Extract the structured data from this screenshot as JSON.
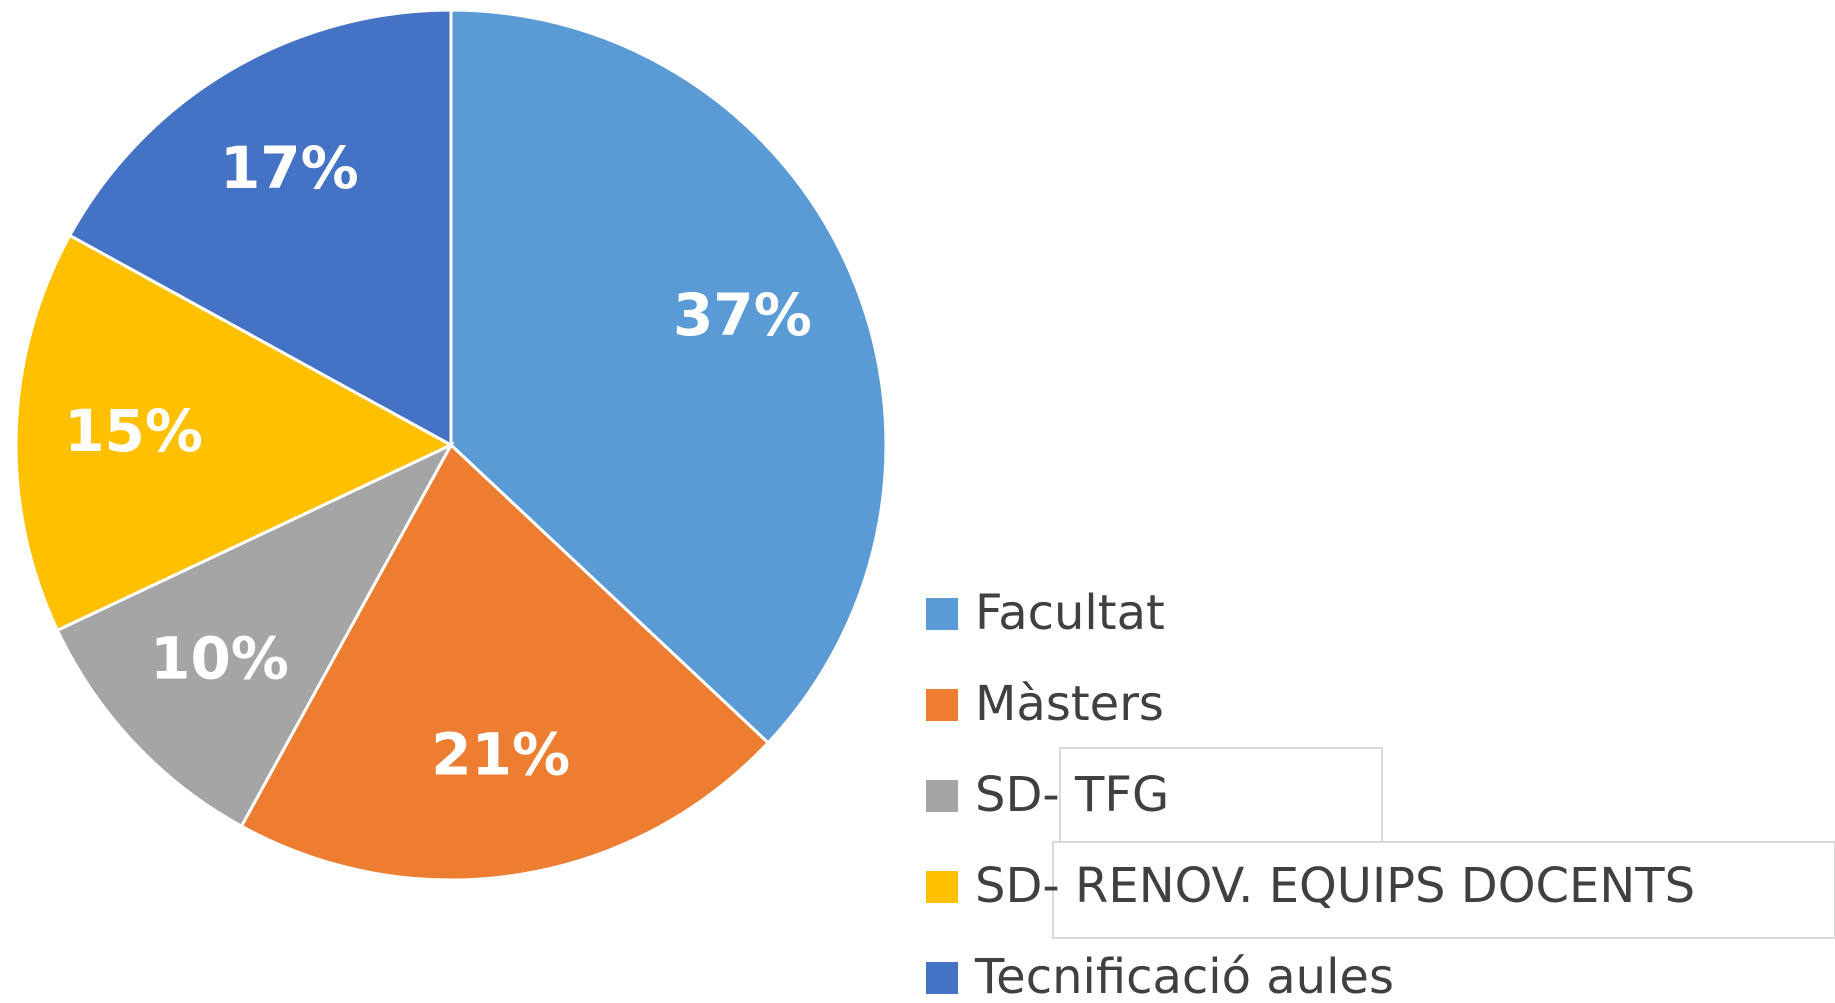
{
  "chart_data": {
    "type": "pie",
    "categories": [
      "Facultat",
      "Màsters",
      "SD- TFG",
      "SD- RENOV. EQUIPS DOCENTS",
      "Tecnificació aules"
    ],
    "values": [
      37,
      21,
      10,
      15,
      17
    ],
    "value_labels": [
      "37%",
      "21%",
      "10%",
      "15%",
      "17%"
    ],
    "colors": [
      "#5b9bd5",
      "#ed7d31",
      "#a5a5a5",
      "#ffc000",
      "#4472c4"
    ],
    "legend": "right-bottom"
  }
}
